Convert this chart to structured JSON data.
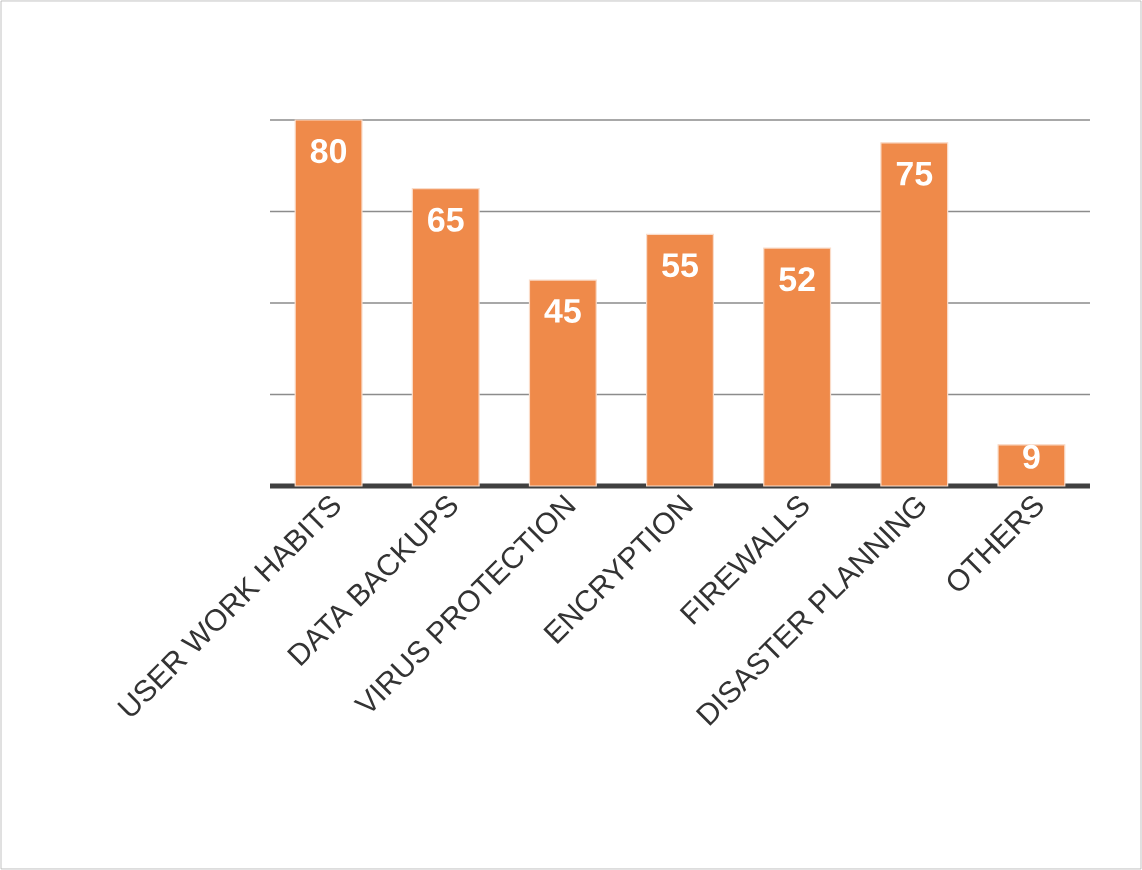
{
  "chart_data": {
    "type": "bar",
    "categories": [
      "USER WORK HABITS",
      "DATA BACKUPS",
      "VIRUS PROTECTION",
      "ENCRYPTION",
      "FIREWALLS",
      "DISASTER PLANNING",
      "OTHERS"
    ],
    "values": [
      80,
      65,
      45,
      55,
      52,
      75,
      9
    ],
    "color": "#ef8a4a",
    "data_labels": true,
    "grid": "y",
    "tick_labels": "x",
    "ylim": [
      0,
      80
    ]
  }
}
